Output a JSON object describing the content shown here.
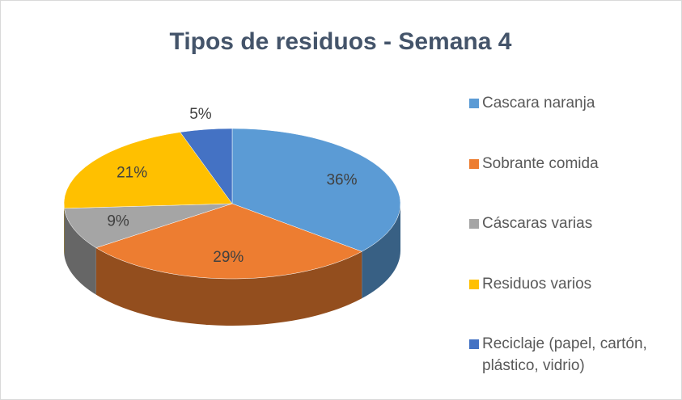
{
  "chart_data": {
    "type": "pie3d",
    "title": "Tipos de residuos - Semana 4",
    "categories": [
      "Cascara naranja",
      "Sobrante comida",
      "Cáscaras varias",
      "Residuos varios",
      "Reciclaje (papel, cartón, plástico, vidrio)"
    ],
    "values": [
      36,
      29,
      9,
      21,
      5
    ],
    "value_labels": [
      "36%",
      "29%",
      "9%",
      "21%",
      "5%"
    ],
    "colors": [
      "#5b9bd5",
      "#ed7d31",
      "#a5a5a5",
      "#ffc000",
      "#4472c4"
    ],
    "legend": "right"
  }
}
